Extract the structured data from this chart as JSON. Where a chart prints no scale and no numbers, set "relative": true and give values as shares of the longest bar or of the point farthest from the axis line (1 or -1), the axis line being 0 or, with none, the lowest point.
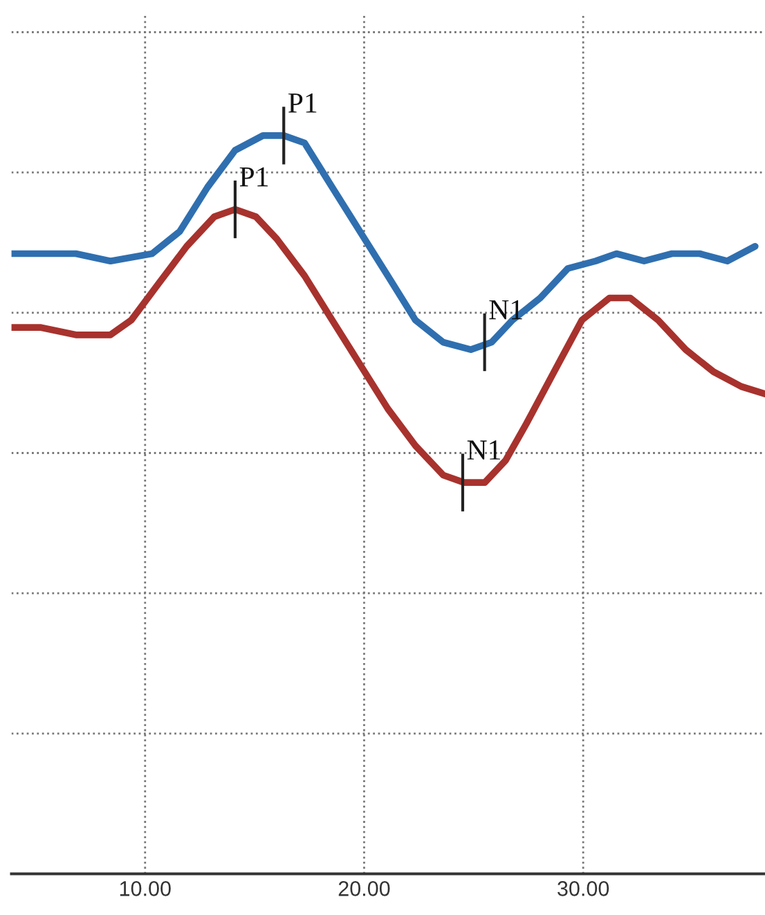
{
  "chart_data": {
    "type": "line",
    "relative": true,
    "series": [
      {
        "color": "#2f6fb0",
        "x": [
          3.9,
          5.25,
          6.84,
          8.42,
          10.32,
          11.58,
          12.85,
          14.11,
          15.38,
          16.33,
          17.28,
          18.54,
          19.81,
          21.08,
          22.34,
          23.61,
          24.87,
          25.82,
          26.77,
          28.04,
          29.3,
          30.57,
          31.52,
          32.78,
          34.05,
          35.32,
          36.58,
          37.85
        ],
        "values": [
          0.84,
          0.84,
          0.84,
          0.83,
          0.84,
          0.87,
          0.93,
          0.98,
          1.0,
          1.0,
          0.99,
          0.93,
          0.87,
          0.81,
          0.75,
          0.72,
          0.71,
          0.72,
          0.75,
          0.78,
          0.82,
          0.83,
          0.84,
          0.83,
          0.84,
          0.84,
          0.83,
          0.85
        ]
      },
      {
        "color": "#a8322d",
        "x": [
          3.9,
          5.25,
          6.84,
          8.42,
          9.37,
          10.63,
          11.9,
          13.16,
          14.11,
          15.06,
          16.01,
          17.28,
          18.54,
          19.81,
          21.08,
          22.34,
          23.61,
          24.56,
          25.51,
          26.46,
          27.41,
          28.67,
          29.94,
          31.2,
          32.15,
          33.42,
          34.68,
          35.95,
          37.22,
          38.3
        ],
        "values": [
          0.74,
          0.74,
          0.73,
          0.73,
          0.75,
          0.8,
          0.85,
          0.89,
          0.9,
          0.89,
          0.86,
          0.81,
          0.75,
          0.69,
          0.63,
          0.58,
          0.54,
          0.53,
          0.53,
          0.56,
          0.61,
          0.68,
          0.75,
          0.78,
          0.78,
          0.75,
          0.71,
          0.68,
          0.66,
          0.65
        ]
      }
    ],
    "annotations": [
      {
        "text": "P1",
        "x": 16.33,
        "y": 1.0
      },
      {
        "text": "P1",
        "x": 14.11,
        "y": 0.9
      },
      {
        "text": "N1",
        "x": 25.5,
        "y": 0.72
      },
      {
        "text": "N1",
        "x": 24.5,
        "y": 0.53
      }
    ],
    "xlim": [
      3.9,
      38.3
    ],
    "xticks": [
      {
        "value": 10,
        "label": "10.00"
      },
      {
        "value": 20,
        "label": "20.00"
      },
      {
        "value": 30,
        "label": "30.00"
      }
    ],
    "grid": true,
    "tick_labels": "x",
    "line_style": "solid",
    "marker": "none"
  }
}
